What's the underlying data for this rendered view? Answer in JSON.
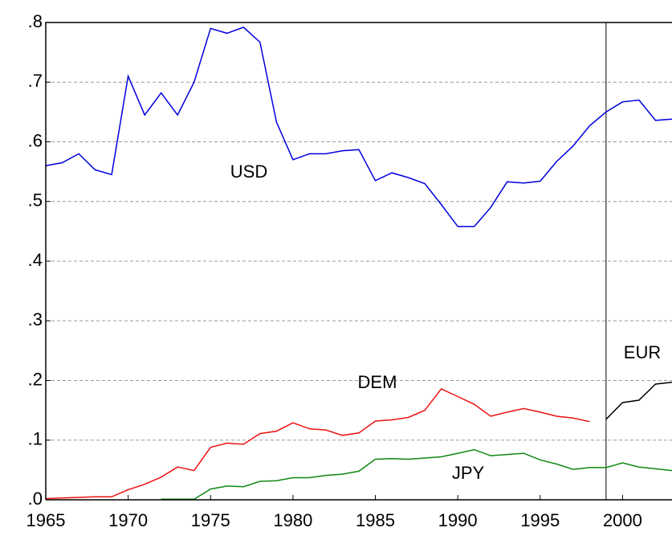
{
  "chart_data": {
    "type": "line",
    "x": [
      1965,
      1966,
      1967,
      1968,
      1969,
      1970,
      1971,
      1972,
      1973,
      1974,
      1975,
      1976,
      1977,
      1978,
      1979,
      1980,
      1981,
      1982,
      1983,
      1984,
      1985,
      1986,
      1987,
      1988,
      1989,
      1990,
      1991,
      1992,
      1993,
      1994,
      1995,
      1996,
      1997,
      1998,
      1999,
      2000,
      2001,
      2002,
      2003
    ],
    "series": [
      {
        "name": "USD",
        "color": "#0000dd",
        "values": [
          0.56,
          0.565,
          0.58,
          0.553,
          0.545,
          0.71,
          0.645,
          0.682,
          0.645,
          0.7,
          0.79,
          0.782,
          0.792,
          0.767,
          0.633,
          0.57,
          0.58,
          0.58,
          0.585,
          0.587,
          0.535,
          0.548,
          0.54,
          0.53,
          0.495,
          0.458,
          0.458,
          0.49,
          0.533,
          0.531,
          0.534,
          0.567,
          0.593,
          0.627,
          0.65,
          0.667,
          0.67,
          0.636,
          0.638
        ]
      },
      {
        "name": "DEM",
        "color": "#ee1111",
        "values": [
          0.002,
          0.003,
          0.004,
          0.005,
          0.005,
          0.017,
          0.026,
          0.038,
          0.055,
          0.049,
          0.088,
          0.095,
          0.093,
          0.111,
          0.115,
          0.129,
          0.119,
          0.117,
          0.108,
          0.112,
          0.132,
          0.134,
          0.138,
          0.15,
          0.186,
          0.173,
          0.16,
          0.14,
          0.147,
          0.153,
          0.147,
          0.14,
          0.137,
          0.131,
          null,
          null,
          null,
          null,
          null
        ]
      },
      {
        "name": "EUR",
        "color": "#000000",
        "values": [
          null,
          null,
          null,
          null,
          null,
          null,
          null,
          null,
          null,
          null,
          null,
          null,
          null,
          null,
          null,
          null,
          null,
          null,
          null,
          null,
          null,
          null,
          null,
          null,
          null,
          null,
          null,
          null,
          null,
          null,
          null,
          null,
          null,
          null,
          0.135,
          0.163,
          0.167,
          0.194,
          0.197
        ]
      },
      {
        "name": "JPY",
        "color": "#118811",
        "values": [
          null,
          null,
          null,
          null,
          null,
          null,
          null,
          0.001,
          0.001,
          0.001,
          0.018,
          0.023,
          0.022,
          0.031,
          0.032,
          0.037,
          0.037,
          0.041,
          0.043,
          0.048,
          0.068,
          0.069,
          0.068,
          0.07,
          0.072,
          0.078,
          0.084,
          0.074,
          0.076,
          0.078,
          0.067,
          0.06,
          0.051,
          0.054,
          0.054,
          0.062,
          0.055,
          0.052,
          0.049
        ]
      }
    ],
    "xlim": [
      1965,
      2003
    ],
    "xticks": [
      1965,
      1970,
      1975,
      1980,
      1985,
      1990,
      1995,
      2000
    ],
    "ylim": [
      0,
      0.8
    ],
    "yticks": [
      {
        "value": 0,
        "label": ".0"
      },
      {
        "value": 0.1,
        "label": ".1"
      },
      {
        "value": 0.2,
        "label": ".2"
      },
      {
        "value": 0.3,
        "label": ".3"
      },
      {
        "value": 0.4,
        "label": ".4"
      },
      {
        "value": 0.5,
        "label": ".5"
      },
      {
        "value": 0.6,
        "label": ".6"
      },
      {
        "value": 0.7,
        "label": ".7"
      },
      {
        "value": 0.8,
        "label": ".8"
      }
    ],
    "grid": true,
    "vline": 1999
  }
}
